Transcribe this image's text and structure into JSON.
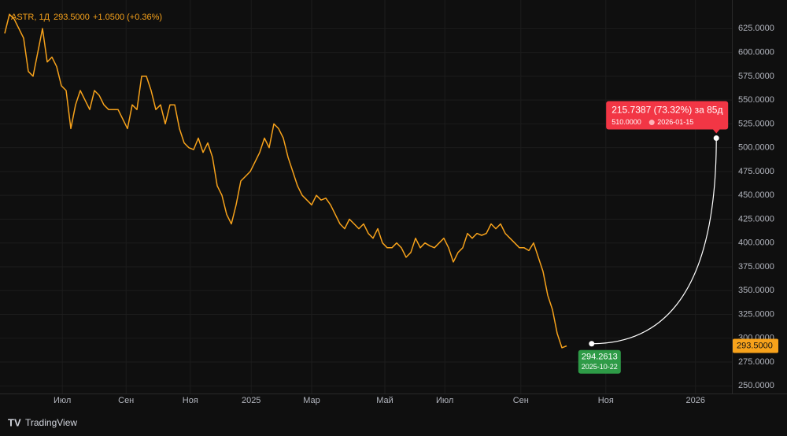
{
  "chart_data": {
    "type": "line",
    "symbol": "ASTR, 1Д",
    "last_price_label": "293.5000",
    "change": "+1.0500 (+0.36%)",
    "brand": "TradingView",
    "color": "#f7a21b",
    "grid": true,
    "values": [
      620,
      640,
      635,
      625,
      615,
      580,
      575,
      600,
      625,
      590,
      595,
      585,
      565,
      560,
      520,
      545,
      560,
      550,
      540,
      560,
      555,
      545,
      540,
      540,
      540,
      530,
      520,
      545,
      540,
      575,
      575,
      560,
      540,
      545,
      525,
      545,
      545,
      520,
      505,
      500,
      498,
      510,
      495,
      505,
      490,
      460,
      450,
      430,
      420,
      440,
      465,
      470,
      475,
      485,
      495,
      510,
      500,
      525,
      520,
      510,
      490,
      475,
      460,
      450,
      445,
      440,
      450,
      445,
      447,
      440,
      430,
      420,
      415,
      425,
      420,
      415,
      420,
      410,
      405,
      415,
      400,
      395,
      395,
      400,
      395,
      385,
      390,
      405,
      395,
      400,
      397,
      395,
      400,
      405,
      395,
      380,
      390,
      395,
      410,
      405,
      410,
      408,
      410,
      420,
      415,
      420,
      410,
      405,
      400,
      395,
      395,
      392,
      400,
      385,
      370,
      345,
      330,
      305,
      290,
      292
    ],
    "xlim": [
      0,
      155
    ],
    "xticks": [
      {
        "value": 13.2,
        "label": "Июл"
      },
      {
        "value": 26.7,
        "label": "Сен"
      },
      {
        "value": 40.3,
        "label": "Ноя"
      },
      {
        "value": 53.2,
        "label": "2025"
      },
      {
        "value": 66,
        "label": "Мар"
      },
      {
        "value": 81.5,
        "label": "Май"
      },
      {
        "value": 94.2,
        "label": "Июл"
      },
      {
        "value": 110.3,
        "label": "Сен"
      },
      {
        "value": 128.3,
        "label": "Ноя"
      },
      {
        "value": 147.3,
        "label": "2026"
      }
    ],
    "ylim": [
      242,
      655
    ],
    "yticks": [
      {
        "value": 250,
        "label": "250.0000"
      },
      {
        "value": 275,
        "label": "275.0000"
      },
      {
        "value": 300,
        "label": "300.0000"
      },
      {
        "value": 325,
        "label": "325.0000"
      },
      {
        "value": 350,
        "label": "350.0000"
      },
      {
        "value": 375,
        "label": "375.0000"
      },
      {
        "value": 400,
        "label": "400.0000"
      },
      {
        "value": 425,
        "label": "425.0000"
      },
      {
        "value": 450,
        "label": "450.0000"
      },
      {
        "value": 475,
        "label": "475.0000"
      },
      {
        "value": 500,
        "label": "500.0000"
      },
      {
        "value": 525,
        "label": "525.0000"
      },
      {
        "value": 550,
        "label": "550.0000"
      },
      {
        "value": 575,
        "label": "575.0000"
      },
      {
        "value": 600,
        "label": "600.0000"
      },
      {
        "value": 625,
        "label": "625.0000"
      }
    ],
    "measure": {
      "text": "215.7387 (73.32%) за 85д",
      "from": {
        "x": 125.3,
        "value": 294.2613,
        "date": "2025-10-22"
      },
      "to": {
        "x": 151.7,
        "value": 510,
        "label": "510.0000",
        "date": "2026-01-15"
      }
    }
  }
}
